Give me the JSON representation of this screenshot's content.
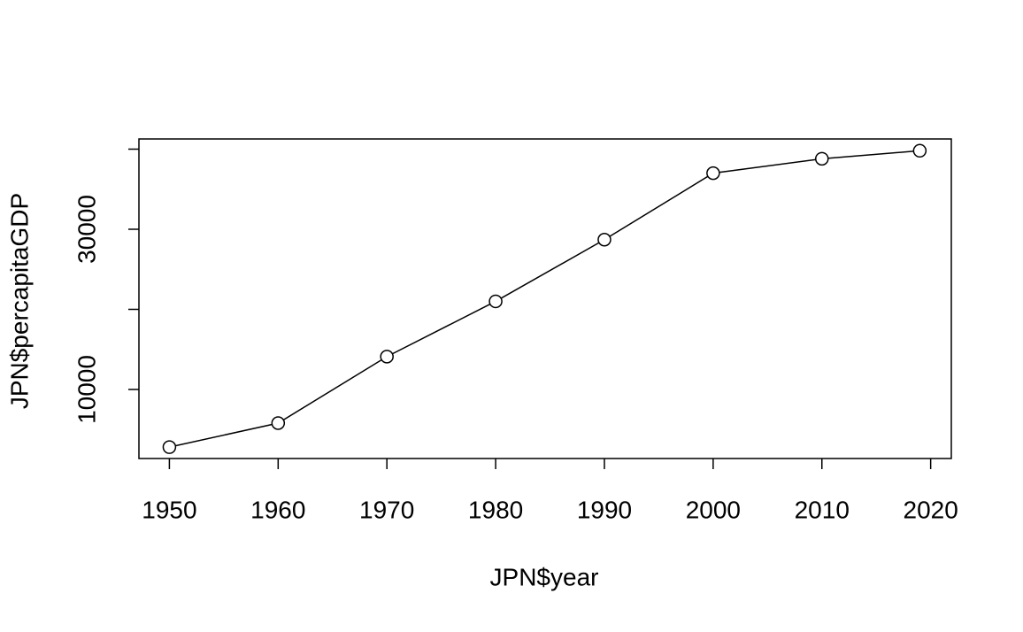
{
  "chart_data": {
    "type": "line",
    "x_label": "JPN$year",
    "y_label": "JPN$percapitaGDP",
    "x": [
      1950,
      1960,
      1970,
      1980,
      1990,
      2000,
      2010,
      2019
    ],
    "values": [
      2800,
      5800,
      14100,
      21000,
      28700,
      37000,
      38800,
      39800
    ],
    "color": "#000000",
    "xlim": [
      1947.2,
      2021.9
    ],
    "xticks": [
      1950,
      1960,
      1970,
      1980,
      1990,
      2000,
      2010,
      2020
    ],
    "ylim": [
      1380,
      41270
    ],
    "yticks": [
      10000,
      {
        "value": 20000,
        "label": null
      },
      30000,
      {
        "value": 40000,
        "label": null
      }
    ],
    "marker": "open-circle"
  }
}
